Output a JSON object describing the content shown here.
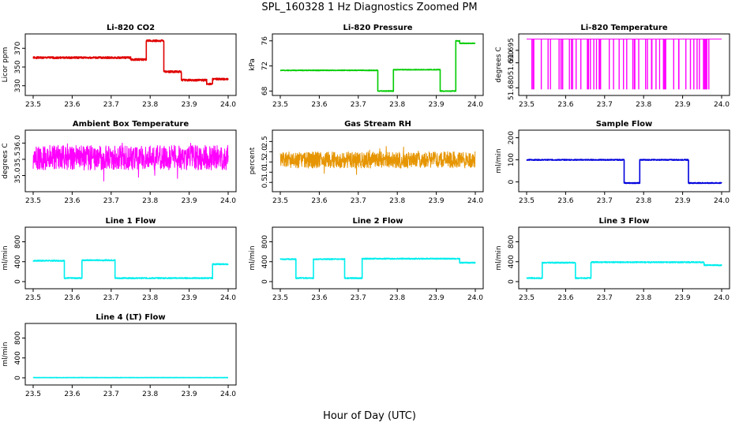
{
  "figure": {
    "title": "SPL_160328  1 Hz Diagnostics Zoomed PM",
    "xlabel": "Hour of Day (UTC)"
  },
  "chart_data": [
    {
      "type": "line",
      "title": "Li-820 CO2",
      "ylabel": "Licor ppm",
      "color": "#e00000",
      "xlim": [
        23.5,
        24.0
      ],
      "ylim": [
        323,
        382
      ],
      "xticks": [
        "23.5",
        "23.6",
        "23.7",
        "23.8",
        "23.9",
        "24.0"
      ],
      "yticks": [
        330,
        350,
        370
      ],
      "noise": 1,
      "seed": 1,
      "segments": [
        {
          "x": [
            23.5,
            23.75
          ],
          "y": 360
        },
        {
          "x": [
            23.75,
            23.79
          ],
          "y": 358
        },
        {
          "x": [
            23.79,
            23.79
          ],
          "y": [
            358,
            370
          ]
        },
        {
          "x": [
            23.79,
            23.835
          ],
          "y": 378
        },
        {
          "x": [
            23.835,
            23.88
          ],
          "y": 345
        },
        {
          "x": [
            23.88,
            23.945
          ],
          "y": 336
        },
        {
          "x": [
            23.945,
            23.96
          ],
          "y": 332
        },
        {
          "x": [
            23.96,
            24.0
          ],
          "y": 337
        }
      ]
    },
    {
      "type": "line",
      "title": "Li-820 Pressure",
      "ylabel": "kPa",
      "color": "#00cc00",
      "xlim": [
        23.5,
        24.0
      ],
      "ylim": [
        67.8,
        76.6
      ],
      "xticks": [
        "23.5",
        "23.6",
        "23.7",
        "23.8",
        "23.9",
        "24.0"
      ],
      "yticks": [
        68,
        72,
        76
      ],
      "noise": 0.05,
      "seed": 2,
      "segments": [
        {
          "x": [
            23.5,
            23.75
          ],
          "y": 71.3
        },
        {
          "x": [
            23.75,
            23.79
          ],
          "y": 68.0
        },
        {
          "x": [
            23.79,
            23.91
          ],
          "y": 71.4
        },
        {
          "x": [
            23.91,
            23.95
          ],
          "y": 68.0
        },
        {
          "x": [
            23.95,
            23.96
          ],
          "y": 76.0
        },
        {
          "x": [
            23.96,
            24.0
          ],
          "y": 75.6
        }
      ]
    },
    {
      "type": "spikes",
      "title": "Li-820 Temperature",
      "ylabel": "degrees C",
      "color": "#ff00ff",
      "xlim": [
        23.5,
        24.0
      ],
      "ylim": [
        51.6782,
        51.7003
      ],
      "xticks": [
        "23.5",
        "23.6",
        "23.7",
        "23.8",
        "23.9",
        "24.0"
      ],
      "yticks": [
        "51.680",
        "51.690",
        "51.695"
      ],
      "base": 51.6995,
      "low": 51.6795,
      "count": 60,
      "seed": 3
    },
    {
      "type": "noise",
      "title": "Ambient Box Temperature",
      "ylabel": "degrees C",
      "color": "#ff00ff",
      "xlim": [
        23.5,
        24.0
      ],
      "ylim": [
        34.6,
        36.3
      ],
      "xticks": [
        "23.5",
        "23.6",
        "23.7",
        "23.8",
        "23.9",
        "24.0"
      ],
      "yticks": [
        "35.0",
        "35.5",
        "36.0"
      ],
      "center": 35.55,
      "amp": 0.38,
      "seed": 4
    },
    {
      "type": "noise",
      "title": "Gas Stream RH",
      "ylabel": "percent",
      "color": "#e69500",
      "xlim": [
        23.5,
        24.0
      ],
      "ylim": [
        0.2,
        2.9
      ],
      "xticks": [
        "23.5",
        "23.6",
        "23.7",
        "23.8",
        "23.9",
        "24.0"
      ],
      "yticks": [
        "0.5",
        "1.0",
        "1.5",
        "2.0",
        "2.5"
      ],
      "center": 1.6,
      "amp": 0.4,
      "seed": 5
    },
    {
      "type": "line",
      "title": "Sample Flow",
      "ylabel": "ml/min",
      "color": "#0000dd",
      "xlim": [
        23.5,
        24.0
      ],
      "ylim": [
        -30,
        220
      ],
      "xticks": [
        "23.5",
        "23.6",
        "23.7",
        "23.8",
        "23.9",
        "24.0"
      ],
      "yticks": [
        0,
        100,
        200
      ],
      "noise": 2,
      "seed": 6,
      "segments": [
        {
          "x": [
            23.5,
            23.75
          ],
          "y": 100
        },
        {
          "x": [
            23.75,
            23.79
          ],
          "y": -5
        },
        {
          "x": [
            23.79,
            23.915
          ],
          "y": 100
        },
        {
          "x": [
            23.915,
            24.0
          ],
          "y": -5
        }
      ]
    },
    {
      "type": "line",
      "title": "Line 1 Flow",
      "ylabel": "ml/min",
      "color": "#00eeee",
      "xlim": [
        23.5,
        24.0
      ],
      "ylim": [
        -80,
        1030
      ],
      "xticks": [
        "23.5",
        "23.6",
        "23.7",
        "23.8",
        "23.9",
        "24.0"
      ],
      "yticks": [
        0,
        400,
        800
      ],
      "noise": 10,
      "seed": 7,
      "segments": [
        {
          "x": [
            23.5,
            23.58
          ],
          "y": 420
        },
        {
          "x": [
            23.58,
            23.625
          ],
          "y": 70
        },
        {
          "x": [
            23.625,
            23.71
          ],
          "y": 430
        },
        {
          "x": [
            23.71,
            23.96
          ],
          "y": 70
        },
        {
          "x": [
            23.96,
            24.0
          ],
          "y": 350
        }
      ]
    },
    {
      "type": "line",
      "title": "Line 2 Flow",
      "ylabel": "ml/min",
      "color": "#00eeee",
      "xlim": [
        23.5,
        24.0
      ],
      "ylim": [
        -80,
        1030
      ],
      "xticks": [
        "23.5",
        "23.6",
        "23.7",
        "23.8",
        "23.9",
        "24.0"
      ],
      "yticks": [
        0,
        400,
        800
      ],
      "noise": 10,
      "seed": 8,
      "segments": [
        {
          "x": [
            23.5,
            23.54
          ],
          "y": 450
        },
        {
          "x": [
            23.54,
            23.585
          ],
          "y": 70
        },
        {
          "x": [
            23.585,
            23.665
          ],
          "y": 450
        },
        {
          "x": [
            23.665,
            23.71
          ],
          "y": 70
        },
        {
          "x": [
            23.71,
            23.96
          ],
          "y": 460
        },
        {
          "x": [
            23.96,
            24.0
          ],
          "y": 380
        }
      ]
    },
    {
      "type": "line",
      "title": "Line 3 Flow",
      "ylabel": "ml/min",
      "color": "#00eeee",
      "xlim": [
        23.5,
        24.0
      ],
      "ylim": [
        -80,
        1030
      ],
      "xticks": [
        "23.5",
        "23.6",
        "23.7",
        "23.8",
        "23.9",
        "24.0"
      ],
      "yticks": [
        0,
        400,
        800
      ],
      "noise": 10,
      "seed": 9,
      "segments": [
        {
          "x": [
            23.5,
            23.54
          ],
          "y": 70
        },
        {
          "x": [
            23.54,
            23.625
          ],
          "y": 380
        },
        {
          "x": [
            23.625,
            23.665
          ],
          "y": 70
        },
        {
          "x": [
            23.665,
            23.955
          ],
          "y": 390
        },
        {
          "x": [
            23.955,
            24.0
          ],
          "y": 330
        }
      ]
    },
    {
      "type": "line",
      "title": "Line 4 (LT) Flow",
      "ylabel": "ml/min",
      "color": "#00eeee",
      "xlim": [
        23.5,
        24.0
      ],
      "ylim": [
        -80,
        1030
      ],
      "xticks": [
        "23.5",
        "23.6",
        "23.7",
        "23.8",
        "23.9",
        "24.0"
      ],
      "yticks": [
        0,
        400,
        800
      ],
      "noise": 3,
      "seed": 10,
      "segments": [
        {
          "x": [
            23.5,
            24.0
          ],
          "y": 5
        }
      ]
    }
  ]
}
